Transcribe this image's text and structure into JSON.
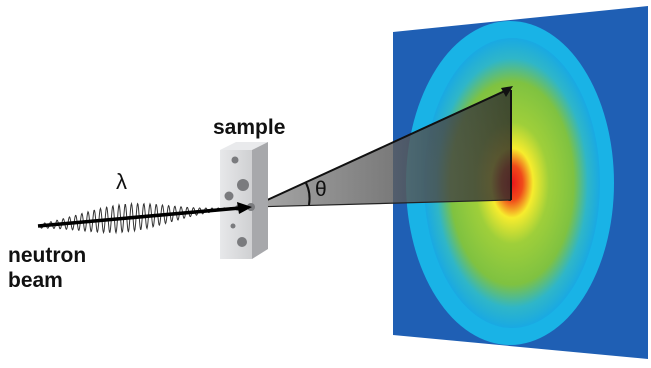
{
  "labels": {
    "sample": "sample",
    "beam_line1": "neutron",
    "beam_line2": "beam",
    "wavelength": "λ",
    "angle": "θ"
  },
  "colors": {
    "detector": "#1f5fb4",
    "ring_cyan": "#19b3e6",
    "ring_green": "#8cc63f",
    "ring_yellow": "#f7ec2d",
    "ring_red": "#e8161b",
    "sample_block": "#c8c9cb",
    "cone": "#555555",
    "arrow": "#111111"
  }
}
